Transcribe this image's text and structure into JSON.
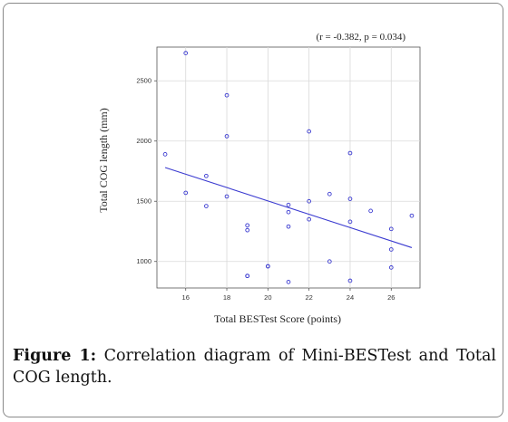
{
  "caption": {
    "label": "Figure 1:",
    "text": " Correlation diagram of Mini-BESTest and Total COG length."
  },
  "chart_data": {
    "type": "scatter",
    "title": "",
    "stat_annotation": "(r = -0.382, p = 0.034)",
    "xlabel": "Total BESTest Score (points)",
    "ylabel": "Total COG length  (mm)",
    "xlim": [
      14.6,
      27.4
    ],
    "ylim": [
      780,
      2780
    ],
    "xticks": [
      16,
      18,
      20,
      22,
      24,
      26
    ],
    "yticks": [
      1000,
      1500,
      2000,
      2500
    ],
    "grid": true,
    "series": [
      {
        "points": [
          [
            15,
            1890
          ],
          [
            16,
            2730
          ],
          [
            16,
            1570
          ],
          [
            17,
            1710
          ],
          [
            17,
            1460
          ],
          [
            18,
            2380
          ],
          [
            18,
            2040
          ],
          [
            18,
            1540
          ],
          [
            19,
            1300
          ],
          [
            19,
            1260
          ],
          [
            19,
            880
          ],
          [
            19,
            880
          ],
          [
            20,
            960
          ],
          [
            20,
            960
          ],
          [
            21,
            1470
          ],
          [
            21,
            1410
          ],
          [
            21,
            1290
          ],
          [
            21,
            830
          ],
          [
            22,
            2080
          ],
          [
            22,
            1500
          ],
          [
            22,
            1350
          ],
          [
            23,
            1560
          ],
          [
            23,
            1000
          ],
          [
            24,
            1900
          ],
          [
            24,
            1520
          ],
          [
            24,
            1330
          ],
          [
            24,
            840
          ],
          [
            25,
            1420
          ],
          [
            26,
            1270
          ],
          [
            26,
            1100
          ],
          [
            26,
            950
          ],
          [
            27,
            1380
          ]
        ]
      }
    ],
    "regression_line": {
      "x": [
        15,
        27
      ],
      "y": [
        1780,
        1115
      ]
    },
    "colors": {
      "points": "#3a3ad0",
      "line": "#3a3ad0",
      "grid": "#d9d9d9"
    }
  }
}
